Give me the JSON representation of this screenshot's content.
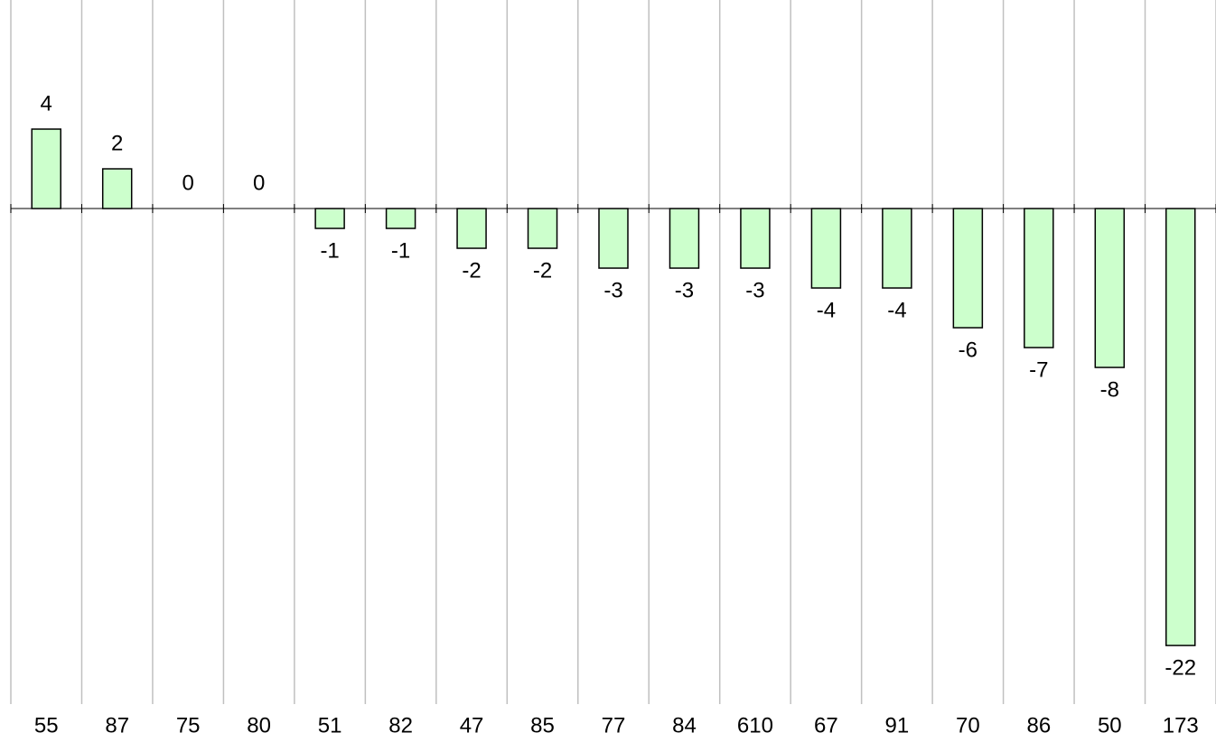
{
  "chart_data": {
    "type": "bar",
    "categories": [
      "55",
      "87",
      "75",
      "80",
      "51",
      "82",
      "47",
      "85",
      "77",
      "84",
      "610",
      "67",
      "91",
      "70",
      "86",
      "50",
      "173"
    ],
    "values": [
      4,
      2,
      0,
      0,
      -1,
      -1,
      -2,
      -2,
      -3,
      -3,
      -3,
      -4,
      -4,
      -6,
      -7,
      -8,
      -22
    ],
    "color": "#ccffcc",
    "ylim": [
      -24.95,
      10.5
    ],
    "grid": true
  }
}
